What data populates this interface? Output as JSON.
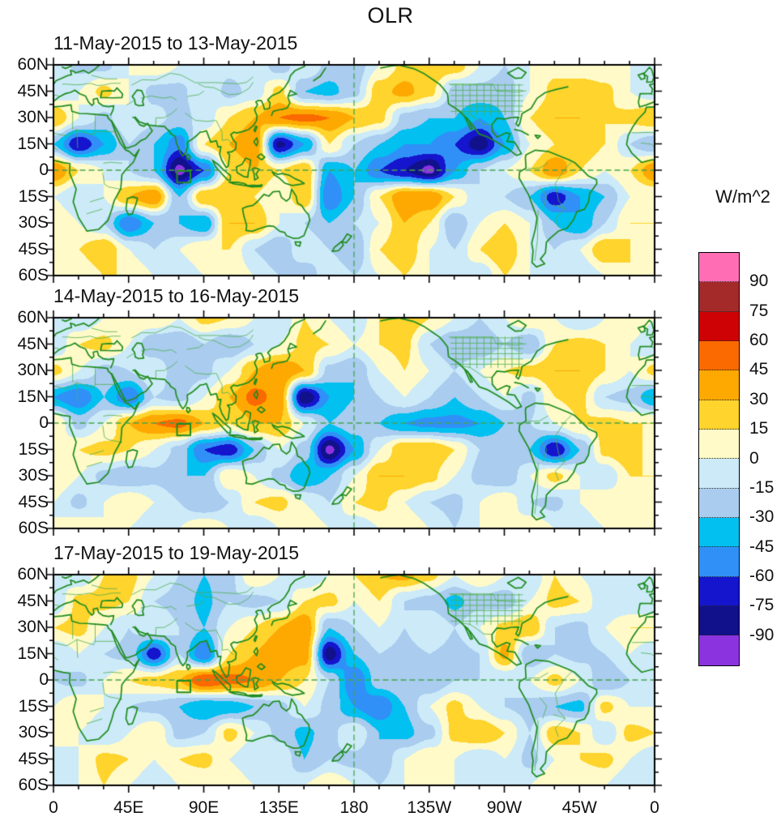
{
  "title": "OLR",
  "colorbar": {
    "unit_label": "W/m^2",
    "tick_labels": [
      "90",
      "75",
      "60",
      "45",
      "30",
      "15",
      "0",
      "-15",
      "-30",
      "-45",
      "-60",
      "-75",
      "-90"
    ],
    "colors_top_to_bottom": [
      "#ff6eb4",
      "#a42a2a",
      "#ce0205",
      "#fa6a00",
      "#fea902",
      "#fed42d",
      "#fffac8",
      "#cceaf8",
      "#a9ccef",
      "#02c0f0",
      "#3090f8",
      "#1515cd",
      "#11118c",
      "#8c33e0"
    ]
  },
  "chart_data": {
    "type": "heatmap",
    "subtype": "filled-contour-world-maps",
    "title": "OLR",
    "units": "W/m^2",
    "projection": {
      "lon_range": [
        0,
        360
      ],
      "lat_range": [
        -60,
        60
      ],
      "note": "cylindrical, longitude 0 at both edges, dateline at center"
    },
    "x_tick_labels": [
      "0",
      "45E",
      "90E",
      "135E",
      "180",
      "135W",
      "90W",
      "45W",
      "0"
    ],
    "x_tick_lons": [
      0,
      45,
      90,
      135,
      180,
      225,
      270,
      315,
      360
    ],
    "x_minor_step_deg": 15,
    "y_tick_labels": [
      "60N",
      "45N",
      "30N",
      "15N",
      "0",
      "15S",
      "30S",
      "45S",
      "60S"
    ],
    "y_tick_lats": [
      60,
      45,
      30,
      15,
      0,
      -15,
      -30,
      -45,
      -60
    ],
    "y_minor_step_deg": 7.5,
    "contour_levels": [
      -90,
      -75,
      -60,
      -45,
      -30,
      -15,
      0,
      15,
      30,
      45,
      60,
      75,
      90
    ],
    "level_colors_low_to_high": [
      "#8c33e0",
      "#11118c",
      "#1515cd",
      "#3090f8",
      "#02c0f0",
      "#a9ccef",
      "#cceaf8",
      "#fffac8",
      "#fed42d",
      "#fea902",
      "#fa6a00",
      "#ce0205",
      "#a42a2a",
      "#ff6eb4"
    ],
    "grid_lons": [
      0,
      15,
      30,
      45,
      60,
      75,
      90,
      105,
      120,
      135,
      150,
      165,
      180,
      195,
      210,
      225,
      240,
      255,
      270,
      285,
      300,
      315,
      330,
      345,
      360
    ],
    "grid_lats": [
      60,
      45,
      30,
      15,
      0,
      -15,
      -30,
      -45,
      -60
    ],
    "annotations": {
      "equator_dashed_line": true,
      "dateline_dashed_line": true,
      "target_box_lonlat": {
        "lon_min": 74,
        "lon_max": 82,
        "lat_min": -7,
        "lat_max": -0.5
      }
    },
    "panels": [
      {
        "title": "11-May-2015 to 13-May-2015",
        "values": [
          [
            0,
            -20,
            -20,
            0,
            10,
            0,
            0,
            -10,
            0,
            -25,
            0,
            -20,
            -25,
            0,
            20,
            30,
            25,
            0,
            -15,
            0,
            10,
            0,
            0,
            0,
            0
          ],
          [
            -10,
            0,
            20,
            0,
            -20,
            -20,
            0,
            -20,
            -10,
            20,
            -30,
            -35,
            -20,
            25,
            35,
            20,
            -20,
            -20,
            -25,
            0,
            20,
            30,
            20,
            0,
            -10
          ],
          [
            30,
            0,
            -20,
            0,
            -10,
            -20,
            -10,
            15,
            30,
            45,
            50,
            45,
            30,
            20,
            -20,
            -30,
            -30,
            -45,
            -30,
            15,
            30,
            30,
            15,
            20,
            30
          ],
          [
            -30,
            -75,
            -45,
            -15,
            -30,
            -55,
            15,
            30,
            45,
            -80,
            -45,
            15,
            -15,
            -30,
            -45,
            -45,
            -60,
            -85,
            -45,
            0,
            15,
            30,
            15,
            -15,
            -30
          ],
          [
            45,
            15,
            0,
            -15,
            -30,
            -95,
            -60,
            15,
            30,
            15,
            30,
            -45,
            -30,
            -60,
            -75,
            -95,
            -45,
            -15,
            0,
            15,
            45,
            15,
            0,
            15,
            45
          ],
          [
            0,
            -15,
            0,
            30,
            45,
            -30,
            30,
            30,
            15,
            0,
            30,
            -60,
            -30,
            15,
            45,
            45,
            15,
            -15,
            -15,
            -30,
            -70,
            -45,
            -30,
            0,
            0
          ],
          [
            15,
            0,
            -15,
            -60,
            -30,
            -30,
            -45,
            30,
            30,
            0,
            -15,
            -30,
            -15,
            0,
            30,
            15,
            -30,
            0,
            15,
            0,
            -30,
            -45,
            -15,
            15,
            15
          ],
          [
            0,
            15,
            30,
            0,
            -15,
            0,
            15,
            15,
            -15,
            -30,
            0,
            -15,
            -30,
            15,
            30,
            0,
            -15,
            15,
            30,
            0,
            -15,
            0,
            30,
            15,
            0
          ],
          [
            0,
            0,
            15,
            15,
            0,
            -15,
            0,
            15,
            0,
            -15,
            -30,
            0,
            -15,
            0,
            15,
            0,
            0,
            -15,
            15,
            0,
            0,
            -15,
            0,
            15,
            0
          ]
        ]
      },
      {
        "title": "14-May-2015 to 16-May-2015",
        "values": [
          [
            0,
            -15,
            0,
            15,
            15,
            0,
            20,
            15,
            0,
            -15,
            15,
            0,
            -15,
            15,
            30,
            15,
            0,
            -15,
            0,
            15,
            0,
            -15,
            0,
            15,
            0
          ],
          [
            -15,
            15,
            20,
            0,
            -30,
            -30,
            -15,
            -30,
            -15,
            0,
            20,
            15,
            0,
            15,
            20,
            -15,
            -30,
            -30,
            -15,
            -30,
            15,
            20,
            15,
            0,
            -15
          ],
          [
            20,
            0,
            -20,
            -15,
            0,
            -30,
            -20,
            0,
            30,
            45,
            30,
            -20,
            -30,
            0,
            15,
            0,
            -15,
            0,
            15,
            20,
            30,
            30,
            15,
            0,
            20
          ],
          [
            -45,
            -60,
            -30,
            -60,
            -15,
            -20,
            0,
            30,
            50,
            40,
            -90,
            -45,
            -30,
            -15,
            0,
            -15,
            -30,
            -15,
            0,
            -20,
            15,
            20,
            -15,
            -20,
            -45
          ],
          [
            15,
            -20,
            0,
            30,
            45,
            50,
            30,
            15,
            30,
            30,
            0,
            -30,
            -20,
            -30,
            -45,
            -50,
            -50,
            -45,
            -30,
            -15,
            0,
            15,
            20,
            15,
            15
          ],
          [
            0,
            15,
            20,
            15,
            0,
            -20,
            -60,
            -70,
            -30,
            0,
            -20,
            -95,
            -45,
            0,
            30,
            30,
            15,
            -15,
            -20,
            -30,
            -75,
            -30,
            20,
            30,
            0
          ],
          [
            15,
            0,
            -20,
            -30,
            -20,
            -30,
            -30,
            15,
            0,
            -20,
            -45,
            -30,
            0,
            30,
            30,
            20,
            0,
            -20,
            -30,
            0,
            20,
            0,
            -15,
            15,
            15
          ],
          [
            0,
            -20,
            0,
            15,
            0,
            -15,
            -30,
            -15,
            15,
            20,
            0,
            -15,
            15,
            20,
            0,
            -15,
            -20,
            0,
            15,
            -15,
            -20,
            0,
            15,
            0,
            0
          ],
          [
            0,
            15,
            0,
            0,
            -15,
            0,
            15,
            0,
            -15,
            0,
            15,
            0,
            -15,
            0,
            15,
            0,
            -15,
            0,
            0,
            15,
            0,
            -15,
            0,
            0,
            0
          ]
        ]
      },
      {
        "title": "17-May-2015 to 19-May-2015",
        "values": [
          [
            0,
            -15,
            15,
            20,
            0,
            -15,
            -30,
            -20,
            15,
            0,
            -15,
            0,
            15,
            30,
            35,
            20,
            0,
            15,
            0,
            -15,
            15,
            0,
            -15,
            0,
            0
          ],
          [
            -15,
            20,
            20,
            15,
            -15,
            -20,
            -35,
            -15,
            -20,
            -15,
            15,
            20,
            0,
            15,
            -15,
            -20,
            -35,
            -20,
            -25,
            0,
            20,
            15,
            -15,
            -15,
            -15
          ],
          [
            15,
            20,
            0,
            -15,
            0,
            -15,
            -30,
            0,
            15,
            30,
            45,
            -30,
            -15,
            0,
            -15,
            0,
            -15,
            0,
            20,
            30,
            -15,
            -20,
            0,
            15,
            15
          ],
          [
            -15,
            0,
            -15,
            -20,
            -70,
            -15,
            -60,
            15,
            30,
            45,
            40,
            -85,
            -30,
            -15,
            -20,
            -15,
            -20,
            -15,
            35,
            -30,
            -15,
            -20,
            -15,
            0,
            -15
          ],
          [
            -15,
            -20,
            0,
            15,
            20,
            30,
            60,
            50,
            45,
            30,
            15,
            -15,
            -60,
            -20,
            -15,
            -30,
            -15,
            -15,
            -15,
            0,
            20,
            0,
            -30,
            -15,
            -15
          ],
          [
            0,
            15,
            0,
            -15,
            -20,
            -30,
            -45,
            -40,
            -30,
            -20,
            0,
            -20,
            -45,
            -60,
            -30,
            0,
            20,
            0,
            -15,
            -20,
            -30,
            -35,
            20,
            0,
            0
          ],
          [
            15,
            0,
            -15,
            0,
            15,
            -20,
            -15,
            20,
            0,
            -20,
            -35,
            -20,
            0,
            -30,
            -35,
            -20,
            20,
            30,
            15,
            -15,
            25,
            15,
            -15,
            20,
            15
          ],
          [
            -15,
            0,
            20,
            15,
            0,
            15,
            20,
            0,
            -15,
            0,
            -30,
            -15,
            -20,
            -30,
            0,
            15,
            0,
            -15,
            0,
            -20,
            0,
            15,
            20,
            0,
            -15
          ],
          [
            0,
            0,
            15,
            0,
            -15,
            0,
            0,
            15,
            0,
            -15,
            0,
            15,
            0,
            -15,
            0,
            15,
            0,
            0,
            -15,
            0,
            15,
            0,
            0,
            -15,
            0
          ]
        ]
      }
    ],
    "map_style": {
      "coastline_color": "#1f8c1f",
      "border_color": "#4fae4f",
      "dashed_line_color": "#44a44c",
      "frame_color": "#000000"
    }
  }
}
